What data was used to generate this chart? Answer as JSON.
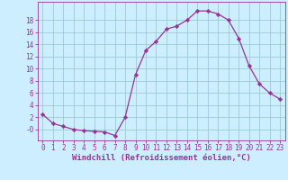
{
  "x": [
    0,
    1,
    2,
    3,
    4,
    5,
    6,
    7,
    8,
    9,
    10,
    11,
    12,
    13,
    14,
    15,
    16,
    17,
    18,
    19,
    20,
    21,
    22,
    23
  ],
  "y": [
    2.5,
    1.0,
    0.5,
    0.0,
    -0.2,
    -0.3,
    -0.4,
    -1.0,
    2.0,
    9.0,
    13.0,
    14.5,
    16.5,
    17.0,
    18.0,
    19.5,
    19.5,
    19.0,
    18.0,
    15.0,
    10.5,
    7.5,
    6.0,
    5.0
  ],
  "line_color": "#993399",
  "marker": "D",
  "marker_size": 2.2,
  "bg_color": "#cceeff",
  "grid_color": "#99cccc",
  "xlabel": "Windchill (Refroidissement éolien,°C)",
  "xlabel_fontsize": 6.5,
  "xtick_labels": [
    "0",
    "1",
    "2",
    "3",
    "4",
    "5",
    "6",
    "7",
    "8",
    "9",
    "10",
    "11",
    "12",
    "13",
    "14",
    "15",
    "16",
    "17",
    "18",
    "19",
    "20",
    "21",
    "22",
    "23"
  ],
  "ytick_values": [
    0,
    2,
    4,
    6,
    8,
    10,
    12,
    14,
    16,
    18
  ],
  "ytick_labels": [
    "-0",
    "2",
    "4",
    "6",
    "8",
    "10",
    "12",
    "14",
    "16",
    "18"
  ],
  "ylim": [
    -1.8,
    21
  ],
  "xlim": [
    -0.5,
    23.5
  ],
  "tick_color": "#993399",
  "tick_fontsize": 5.5,
  "spine_color": "#993399"
}
